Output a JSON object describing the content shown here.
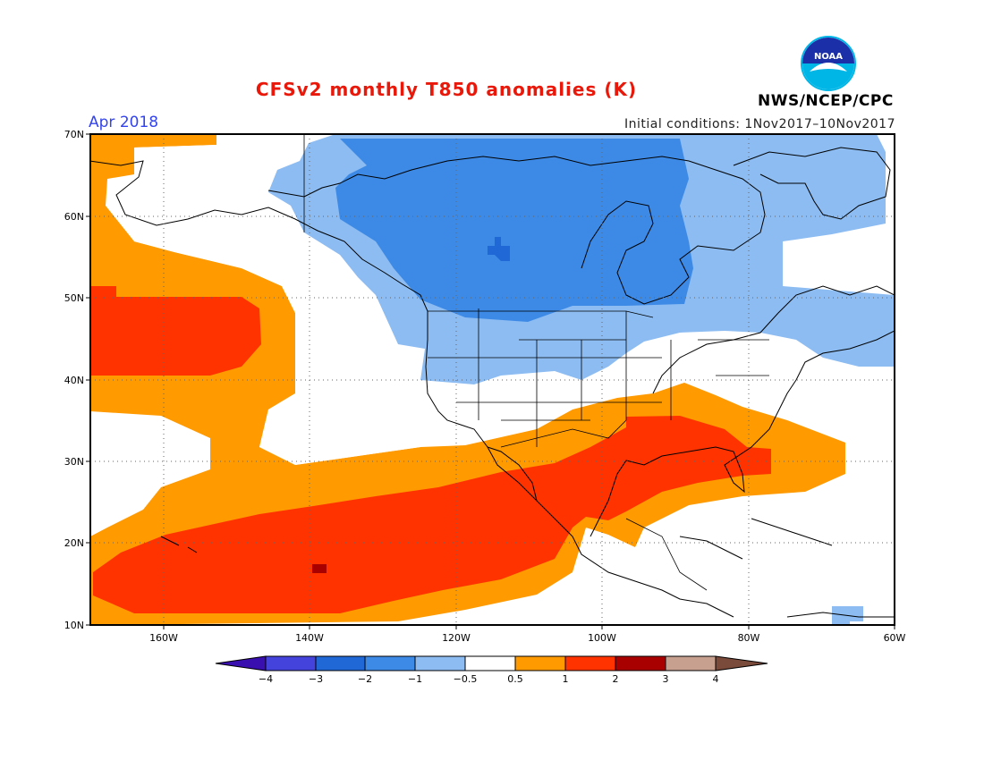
{
  "header": {
    "title": "CFSv2 monthly T850 anomalies (K)",
    "month": "Apr 2018",
    "initial_conditions": "Initial conditions: 1Nov2017–10Nov2017",
    "agency": "NWS/NCEP/CPC",
    "logo_text": "NOAA"
  },
  "map": {
    "lat_ticks": [
      "70N",
      "60N",
      "50N",
      "40N",
      "30N",
      "20N",
      "10N"
    ],
    "lon_ticks": [
      "160W",
      "140W",
      "120W",
      "100W",
      "80W",
      "60W"
    ],
    "extent": {
      "lon": [
        -170,
        -60
      ],
      "lat": [
        10,
        70
      ]
    },
    "colors": {
      "neg4": "#3a0fb0",
      "neg3": "#4444dd",
      "neg2": "#1f68d6",
      "neg1": "#3d8ae6",
      "neg05": "#8cbcf2",
      "zero": "#ffffff",
      "pos05": "#ff9a00",
      "pos1": "#ff3300",
      "pos2": "#a80000",
      "pos3": "#c8a090",
      "pos4": "#7a4a3a",
      "coast": "#000000"
    }
  },
  "colorbar": {
    "labels": [
      "−4",
      "−3",
      "−2",
      "−1",
      "−0.5",
      "0.5",
      "1",
      "2",
      "3",
      "4"
    ]
  }
}
